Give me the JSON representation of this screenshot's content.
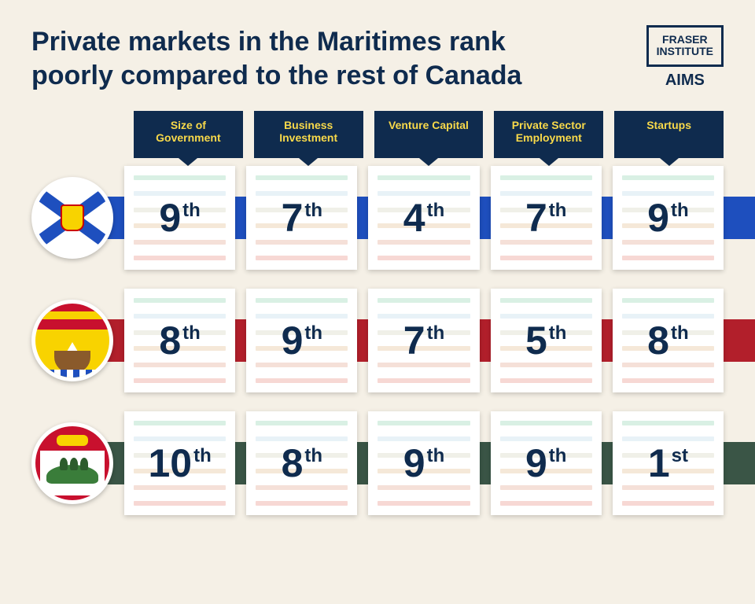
{
  "title": "Private markets in the Maritimes rank poorly compared to the rest of Canada",
  "logos": {
    "fraser_line1": "FRASER",
    "fraser_line2": "INSTITUTE",
    "aims": "AIMS"
  },
  "columns": [
    "Size of Government",
    "Business Investment",
    "Venture Capital",
    "Private Sector Employment",
    "Startups"
  ],
  "rows": [
    {
      "name": "nova-scotia",
      "stripe_color": "#1e4fbe",
      "ranks": [
        {
          "num": "9",
          "suf": "th"
        },
        {
          "num": "7",
          "suf": "th"
        },
        {
          "num": "4",
          "suf": "th"
        },
        {
          "num": "7",
          "suf": "th"
        },
        {
          "num": "9",
          "suf": "th"
        }
      ]
    },
    {
      "name": "new-brunswick",
      "stripe_color": "#b21f2b",
      "ranks": [
        {
          "num": "8",
          "suf": "th"
        },
        {
          "num": "9",
          "suf": "th"
        },
        {
          "num": "7",
          "suf": "th"
        },
        {
          "num": "5",
          "suf": "th"
        },
        {
          "num": "8",
          "suf": "th"
        }
      ]
    },
    {
      "name": "pei",
      "stripe_color": "#3a5546",
      "ranks": [
        {
          "num": "10",
          "suf": "th"
        },
        {
          "num": "8",
          "suf": "th"
        },
        {
          "num": "9",
          "suf": "th"
        },
        {
          "num": "9",
          "suf": "th"
        },
        {
          "num": "1",
          "suf": "st"
        }
      ]
    }
  ],
  "cell_bg_bars": [
    "#d9f0e4",
    "#e8f2f7",
    "#f0f0e8",
    "#f5e8d8",
    "#f5e0d8",
    "#f7d8d4"
  ],
  "style": {
    "background": "#f5f0e6",
    "title_color": "#0f2b4e",
    "title_fontsize": 34,
    "header_bg": "#0f2b4e",
    "header_text_color": "#f8d94a",
    "header_fontsize": 14,
    "rank_color": "#0f2b4e",
    "rank_fontsize": 50,
    "rank_suffix_fontsize": 24,
    "cell_bg": "#ffffff"
  }
}
